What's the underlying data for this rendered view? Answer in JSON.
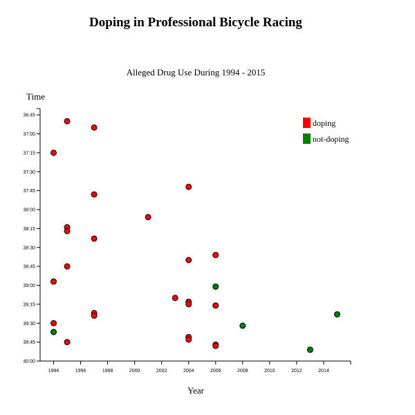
{
  "chart_data": {
    "type": "scatter",
    "title": "Doping in Professional Bicycle Racing",
    "subtitle": "Alleged Drug Use During 1994 - 2015",
    "xlabel": "Year",
    "ylabel": "Time",
    "xlim": [
      1993,
      2016
    ],
    "ylim": [
      "36:40",
      "40:00"
    ],
    "y_inverted": true,
    "x_ticks": [
      "1994",
      "1996",
      "1998",
      "2000",
      "2002",
      "2004",
      "2006",
      "2008",
      "2010",
      "2012",
      "2014"
    ],
    "y_ticks": [
      "36:45",
      "37:00",
      "37:15",
      "37:30",
      "37:45",
      "38:00",
      "38:15",
      "38:30",
      "38:45",
      "39:00",
      "39:15",
      "39:30",
      "39:45",
      "40:00"
    ],
    "legend": {
      "position": "top-right"
    },
    "colors": {
      "doping": "#ff0000",
      "not-doping": "#008000"
    },
    "series": [
      {
        "name": "doping",
        "color": "#ff0000",
        "points": [
          {
            "x": 1995,
            "y": "36:50"
          },
          {
            "x": 1997,
            "y": "36:55"
          },
          {
            "x": 1994,
            "y": "37:15"
          },
          {
            "x": 1997,
            "y": "37:48"
          },
          {
            "x": 2004,
            "y": "37:42"
          },
          {
            "x": 2001,
            "y": "38:06"
          },
          {
            "x": 1995,
            "y": "38:14"
          },
          {
            "x": 1995,
            "y": "38:17"
          },
          {
            "x": 1997,
            "y": "38:23"
          },
          {
            "x": 2006,
            "y": "38:36"
          },
          {
            "x": 2004,
            "y": "38:40"
          },
          {
            "x": 1995,
            "y": "38:45"
          },
          {
            "x": 1994,
            "y": "38:57"
          },
          {
            "x": 2003,
            "y": "39:10"
          },
          {
            "x": 2004,
            "y": "39:13"
          },
          {
            "x": 2004,
            "y": "39:15"
          },
          {
            "x": 2006,
            "y": "39:16"
          },
          {
            "x": 1997,
            "y": "39:22"
          },
          {
            "x": 1997,
            "y": "39:24"
          },
          {
            "x": 1994,
            "y": "39:30"
          },
          {
            "x": 2004,
            "y": "39:41"
          },
          {
            "x": 2004,
            "y": "39:43"
          },
          {
            "x": 1995,
            "y": "39:45"
          },
          {
            "x": 2006,
            "y": "39:47"
          },
          {
            "x": 2006,
            "y": "39:48"
          }
        ]
      },
      {
        "name": "not-doping",
        "color": "#008000",
        "points": [
          {
            "x": 2006,
            "y": "39:01"
          },
          {
            "x": 2015,
            "y": "39:23"
          },
          {
            "x": 2008,
            "y": "39:32"
          },
          {
            "x": 1994,
            "y": "39:37"
          },
          {
            "x": 2013,
            "y": "39:51"
          }
        ]
      }
    ]
  }
}
